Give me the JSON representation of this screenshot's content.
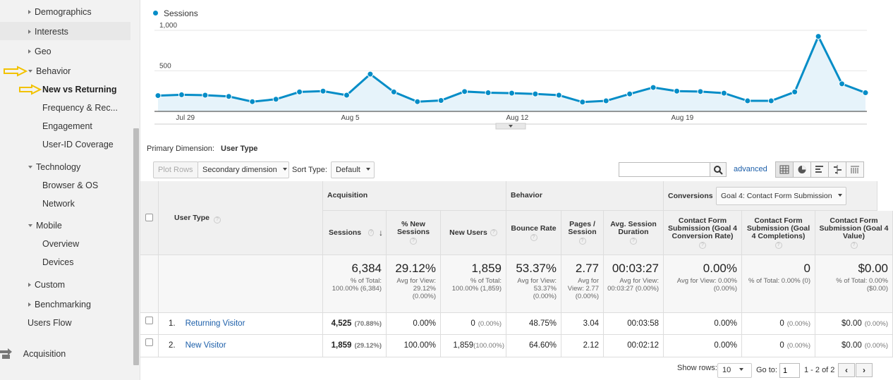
{
  "sidebar": {
    "items": [
      {
        "label": "Demographics",
        "marker": "right",
        "x": 40,
        "y": 10
      },
      {
        "label": "Interests",
        "marker": "right",
        "x": 40,
        "y": 38
      },
      {
        "label": "Geo",
        "marker": "right",
        "x": 40,
        "y": 66
      },
      {
        "label": "Behavior",
        "marker": "down",
        "x": 40,
        "y": 94
      },
      {
        "label": "New vs Returning",
        "marker": "none",
        "x": 60,
        "y": 120
      },
      {
        "label": "Frequency & Rec...",
        "marker": "none",
        "x": 60,
        "y": 146
      },
      {
        "label": "Engagement",
        "marker": "none",
        "x": 60,
        "y": 172
      },
      {
        "label": "User-ID Coverage",
        "marker": "none",
        "x": 60,
        "y": 198
      },
      {
        "label": "Technology",
        "marker": "down",
        "x": 40,
        "y": 230
      },
      {
        "label": "Browser & OS",
        "marker": "none",
        "x": 60,
        "y": 256
      },
      {
        "label": "Network",
        "marker": "none",
        "x": 60,
        "y": 282
      },
      {
        "label": "Mobile",
        "marker": "down",
        "x": 40,
        "y": 313
      },
      {
        "label": "Overview",
        "marker": "none",
        "x": 60,
        "y": 339
      },
      {
        "label": "Devices",
        "marker": "none",
        "x": 60,
        "y": 365
      },
      {
        "label": "Custom",
        "marker": "right",
        "x": 40,
        "y": 397
      },
      {
        "label": "Benchmarking",
        "marker": "right",
        "x": 40,
        "y": 425
      },
      {
        "label": "Users Flow",
        "marker": "none",
        "x": 39,
        "y": 451
      }
    ],
    "acquisition_label": "Acquisition",
    "arrow_color": "#f2c200"
  },
  "chart_data": {
    "type": "area",
    "series": [
      {
        "name": "Sessions",
        "values": [
          195,
          205,
          200,
          185,
          120,
          150,
          240,
          250,
          200,
          460,
          240,
          120,
          135,
          245,
          230,
          225,
          215,
          200,
          115,
          130,
          215,
          295,
          250,
          245,
          225,
          130,
          130,
          240,
          925,
          340,
          230
        ]
      }
    ],
    "x": [
      "Jul 28",
      "Jul 29",
      "Jul 30",
      "Jul 31",
      "Aug 1",
      "Aug 2",
      "Aug 3",
      "Aug 4",
      "Aug 5",
      "Aug 6",
      "Aug 7",
      "Aug 8",
      "Aug 9",
      "Aug 10",
      "Aug 11",
      "Aug 12",
      "Aug 13",
      "Aug 14",
      "Aug 15",
      "Aug 16",
      "Aug 17",
      "Aug 18",
      "Aug 19",
      "Aug 20",
      "Aug 21",
      "Aug 22",
      "Aug 23",
      "Aug 24",
      "Aug 25",
      "Aug 26",
      "Aug 27"
    ],
    "x_tick_labels": [
      "Jul 29",
      "Aug 5",
      "Aug 12",
      "Aug 19"
    ],
    "y_tick_labels": [
      "1,000",
      "500"
    ],
    "ylim": [
      0,
      1000
    ],
    "legend": "top-left",
    "color": "#058dc7",
    "fill": "#e6f3fa"
  },
  "primary_dimension": {
    "label": "Primary Dimension:",
    "value": "User Type"
  },
  "toolbar": {
    "plot_rows": "Plot Rows",
    "secondary_dimension": "Secondary dimension",
    "sort_type_label": "Sort Type:",
    "sort_type_value": "Default",
    "advanced": "advanced",
    "search_value": ""
  },
  "table": {
    "groups": {
      "acquisition": "Acquisition",
      "behavior": "Behavior",
      "conversions": "Conversions",
      "goal_select": "Goal 4: Contact Form Submission"
    },
    "dimension_header": "User Type",
    "columns": [
      {
        "key": "sessions",
        "label": "Sessions"
      },
      {
        "key": "pct_new",
        "label": "% New Sessions"
      },
      {
        "key": "new_users",
        "label": "New Users"
      },
      {
        "key": "bounce",
        "label": "Bounce Rate"
      },
      {
        "key": "pages",
        "label": "Pages / Session"
      },
      {
        "key": "duration",
        "label": "Avg. Session Duration"
      },
      {
        "key": "conv_rate",
        "label": "Contact Form Submission (Goal 4 Conversion Rate)"
      },
      {
        "key": "completions",
        "label": "Contact Form Submission (Goal 4 Completions)"
      },
      {
        "key": "value",
        "label": "Contact Form Submission (Goal 4 Value)"
      }
    ],
    "totals": [
      {
        "big": "6,384",
        "small": "% of Total: 100.00% (6,384)"
      },
      {
        "big": "29.12%",
        "small": "Avg for View: 29.12% (0.00%)"
      },
      {
        "big": "1,859",
        "small": "% of Total: 100.00% (1,859)"
      },
      {
        "big": "53.37%",
        "small": "Avg for View: 53.37% (0.00%)"
      },
      {
        "big": "2.77",
        "small": "Avg for View: 2.77 (0.00%)"
      },
      {
        "big": "00:03:27",
        "small": "Avg for View: 00:03:27 (0.00%)"
      },
      {
        "big": "0.00%",
        "small": "Avg for View: 0.00% (0.00%)"
      },
      {
        "big": "0",
        "small": "% of Total: 0.00% (0)"
      },
      {
        "big": "$0.00",
        "small": "% of Total: 0.00% ($0.00)"
      }
    ],
    "rows": [
      {
        "index": "1.",
        "name": "Returning Visitor",
        "cells": [
          [
            "4,525",
            "(70.88%)"
          ],
          [
            "0.00%",
            ""
          ],
          [
            "0",
            "(0.00%)"
          ],
          [
            "48.75%",
            ""
          ],
          [
            "3.04",
            ""
          ],
          [
            "00:03:58",
            ""
          ],
          [
            "0.00%",
            ""
          ],
          [
            "0",
            "(0.00%)"
          ],
          [
            "$0.00",
            "(0.00%)"
          ]
        ]
      },
      {
        "index": "2.",
        "name": "New Visitor",
        "cells": [
          [
            "1,859",
            "(29.12%)"
          ],
          [
            "100.00%",
            ""
          ],
          [
            "1,859",
            "(100.00%)"
          ],
          [
            "64.60%",
            ""
          ],
          [
            "2.12",
            ""
          ],
          [
            "00:02:12",
            ""
          ],
          [
            "0.00%",
            ""
          ],
          [
            "0",
            "(0.00%)"
          ],
          [
            "$0.00",
            "(0.00%)"
          ]
        ]
      }
    ]
  },
  "footer": {
    "show_rows_label": "Show rows:",
    "show_rows_value": "10",
    "goto_label": "Go to:",
    "goto_value": "1",
    "range": "1 - 2 of 2"
  }
}
